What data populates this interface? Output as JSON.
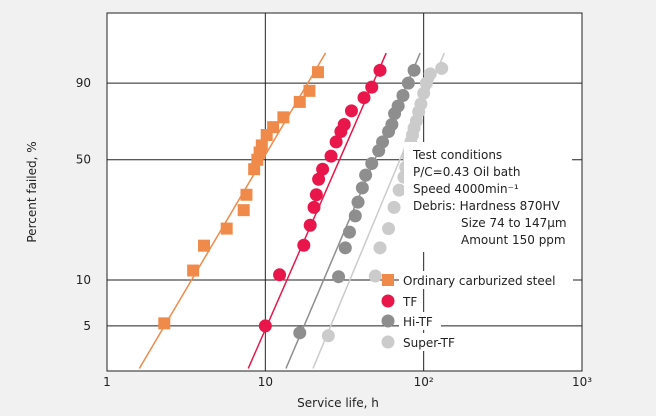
{
  "chart_data": {
    "type": "scatter",
    "title": "",
    "xlabel": "Service life, h",
    "ylabel": "Percent failed, %",
    "x_scale": "log",
    "y_scale": "weibull",
    "xlim": [
      1,
      1000
    ],
    "ylim": [
      2.5,
      99.9
    ],
    "x_ticks": [
      {
        "value": 1,
        "label": "1"
      },
      {
        "value": 10,
        "label": "10"
      },
      {
        "value": 100,
        "label": "10²"
      },
      {
        "value": 1000,
        "label": "10³"
      }
    ],
    "y_ticks": [
      {
        "value": 5,
        "label": "5"
      },
      {
        "value": 10,
        "label": "10"
      },
      {
        "value": 50,
        "label": "50"
      },
      {
        "value": 90,
        "label": "90"
      }
    ],
    "legend_position": "bottom-right",
    "annotation": {
      "lines": [
        "Test conditions",
        "P/C=0.43 Oil bath",
        "Speed 4000min⁻¹",
        "Debris:  Hardness 870HV",
        "Size 74 to 147μm",
        "Amount 150 ppm"
      ]
    },
    "series": [
      {
        "name": "Ordinary carburized steel",
        "color": "#f08a4b",
        "marker": "square",
        "points": [
          [
            2.3,
            5.2
          ],
          [
            3.5,
            11.5
          ],
          [
            4.1,
            16.5
          ],
          [
            5.7,
            21
          ],
          [
            7.3,
            27
          ],
          [
            7.6,
            33
          ],
          [
            8.5,
            45
          ],
          [
            8.9,
            50
          ],
          [
            9.2,
            54
          ],
          [
            9.5,
            58
          ],
          [
            10.2,
            64
          ],
          [
            11.2,
            68.5
          ],
          [
            13,
            74
          ],
          [
            16.5,
            82
          ],
          [
            19,
            87
          ],
          [
            21.5,
            93.5
          ]
        ],
        "fit": [
          [
            1.6,
            2.6
          ],
          [
            24,
            97.5
          ]
        ]
      },
      {
        "name": "TF",
        "color": "#e8164b",
        "marker": "circle",
        "points": [
          [
            10,
            5
          ],
          [
            12.3,
            10.8
          ],
          [
            17.5,
            16.6
          ],
          [
            19.2,
            22
          ],
          [
            20.3,
            28
          ],
          [
            21,
            33
          ],
          [
            21.7,
            40
          ],
          [
            23,
            45
          ],
          [
            26,
            52
          ],
          [
            28,
            60
          ],
          [
            30,
            66
          ],
          [
            31.5,
            70
          ],
          [
            35,
            77.5
          ],
          [
            42,
            84
          ],
          [
            47,
            88.5
          ],
          [
            53,
            94
          ]
        ],
        "fit": [
          [
            7.8,
            2.6
          ],
          [
            58,
            97.5
          ]
        ]
      },
      {
        "name": "Hi-TF",
        "color": "#8e8e8e",
        "marker": "circle",
        "points": [
          [
            16.5,
            4.5
          ],
          [
            29,
            10.5
          ],
          [
            32,
            16
          ],
          [
            34,
            20
          ],
          [
            37,
            25
          ],
          [
            38.5,
            30
          ],
          [
            41,
            36
          ],
          [
            43,
            42
          ],
          [
            47,
            48
          ],
          [
            52,
            55
          ],
          [
            55,
            60
          ],
          [
            60,
            66
          ],
          [
            63,
            70
          ],
          [
            65.5,
            76
          ],
          [
            69,
            80
          ],
          [
            74,
            85
          ],
          [
            80,
            90
          ],
          [
            87,
            94
          ]
        ],
        "fit": [
          [
            13.5,
            2.6
          ],
          [
            95,
            97.5
          ]
        ]
      },
      {
        "name": "Super-TF",
        "color": "#cbcbcb",
        "marker": "circle",
        "points": [
          [
            25,
            4.3
          ],
          [
            49.5,
            10.6
          ],
          [
            53,
            16
          ],
          [
            60,
            21
          ],
          [
            65,
            28
          ],
          [
            70,
            35
          ],
          [
            75,
            41
          ],
          [
            77,
            46
          ],
          [
            80,
            52
          ],
          [
            82,
            56
          ],
          [
            83,
            60
          ],
          [
            85,
            64
          ],
          [
            87,
            68
          ],
          [
            90,
            72
          ],
          [
            93,
            77
          ],
          [
            96,
            81
          ],
          [
            100,
            86
          ],
          [
            104,
            90
          ],
          [
            110,
            93
          ],
          [
            130,
            94.5
          ]
        ],
        "fit": [
          [
            20,
            2.6
          ],
          [
            135,
            97.5
          ]
        ]
      }
    ]
  }
}
